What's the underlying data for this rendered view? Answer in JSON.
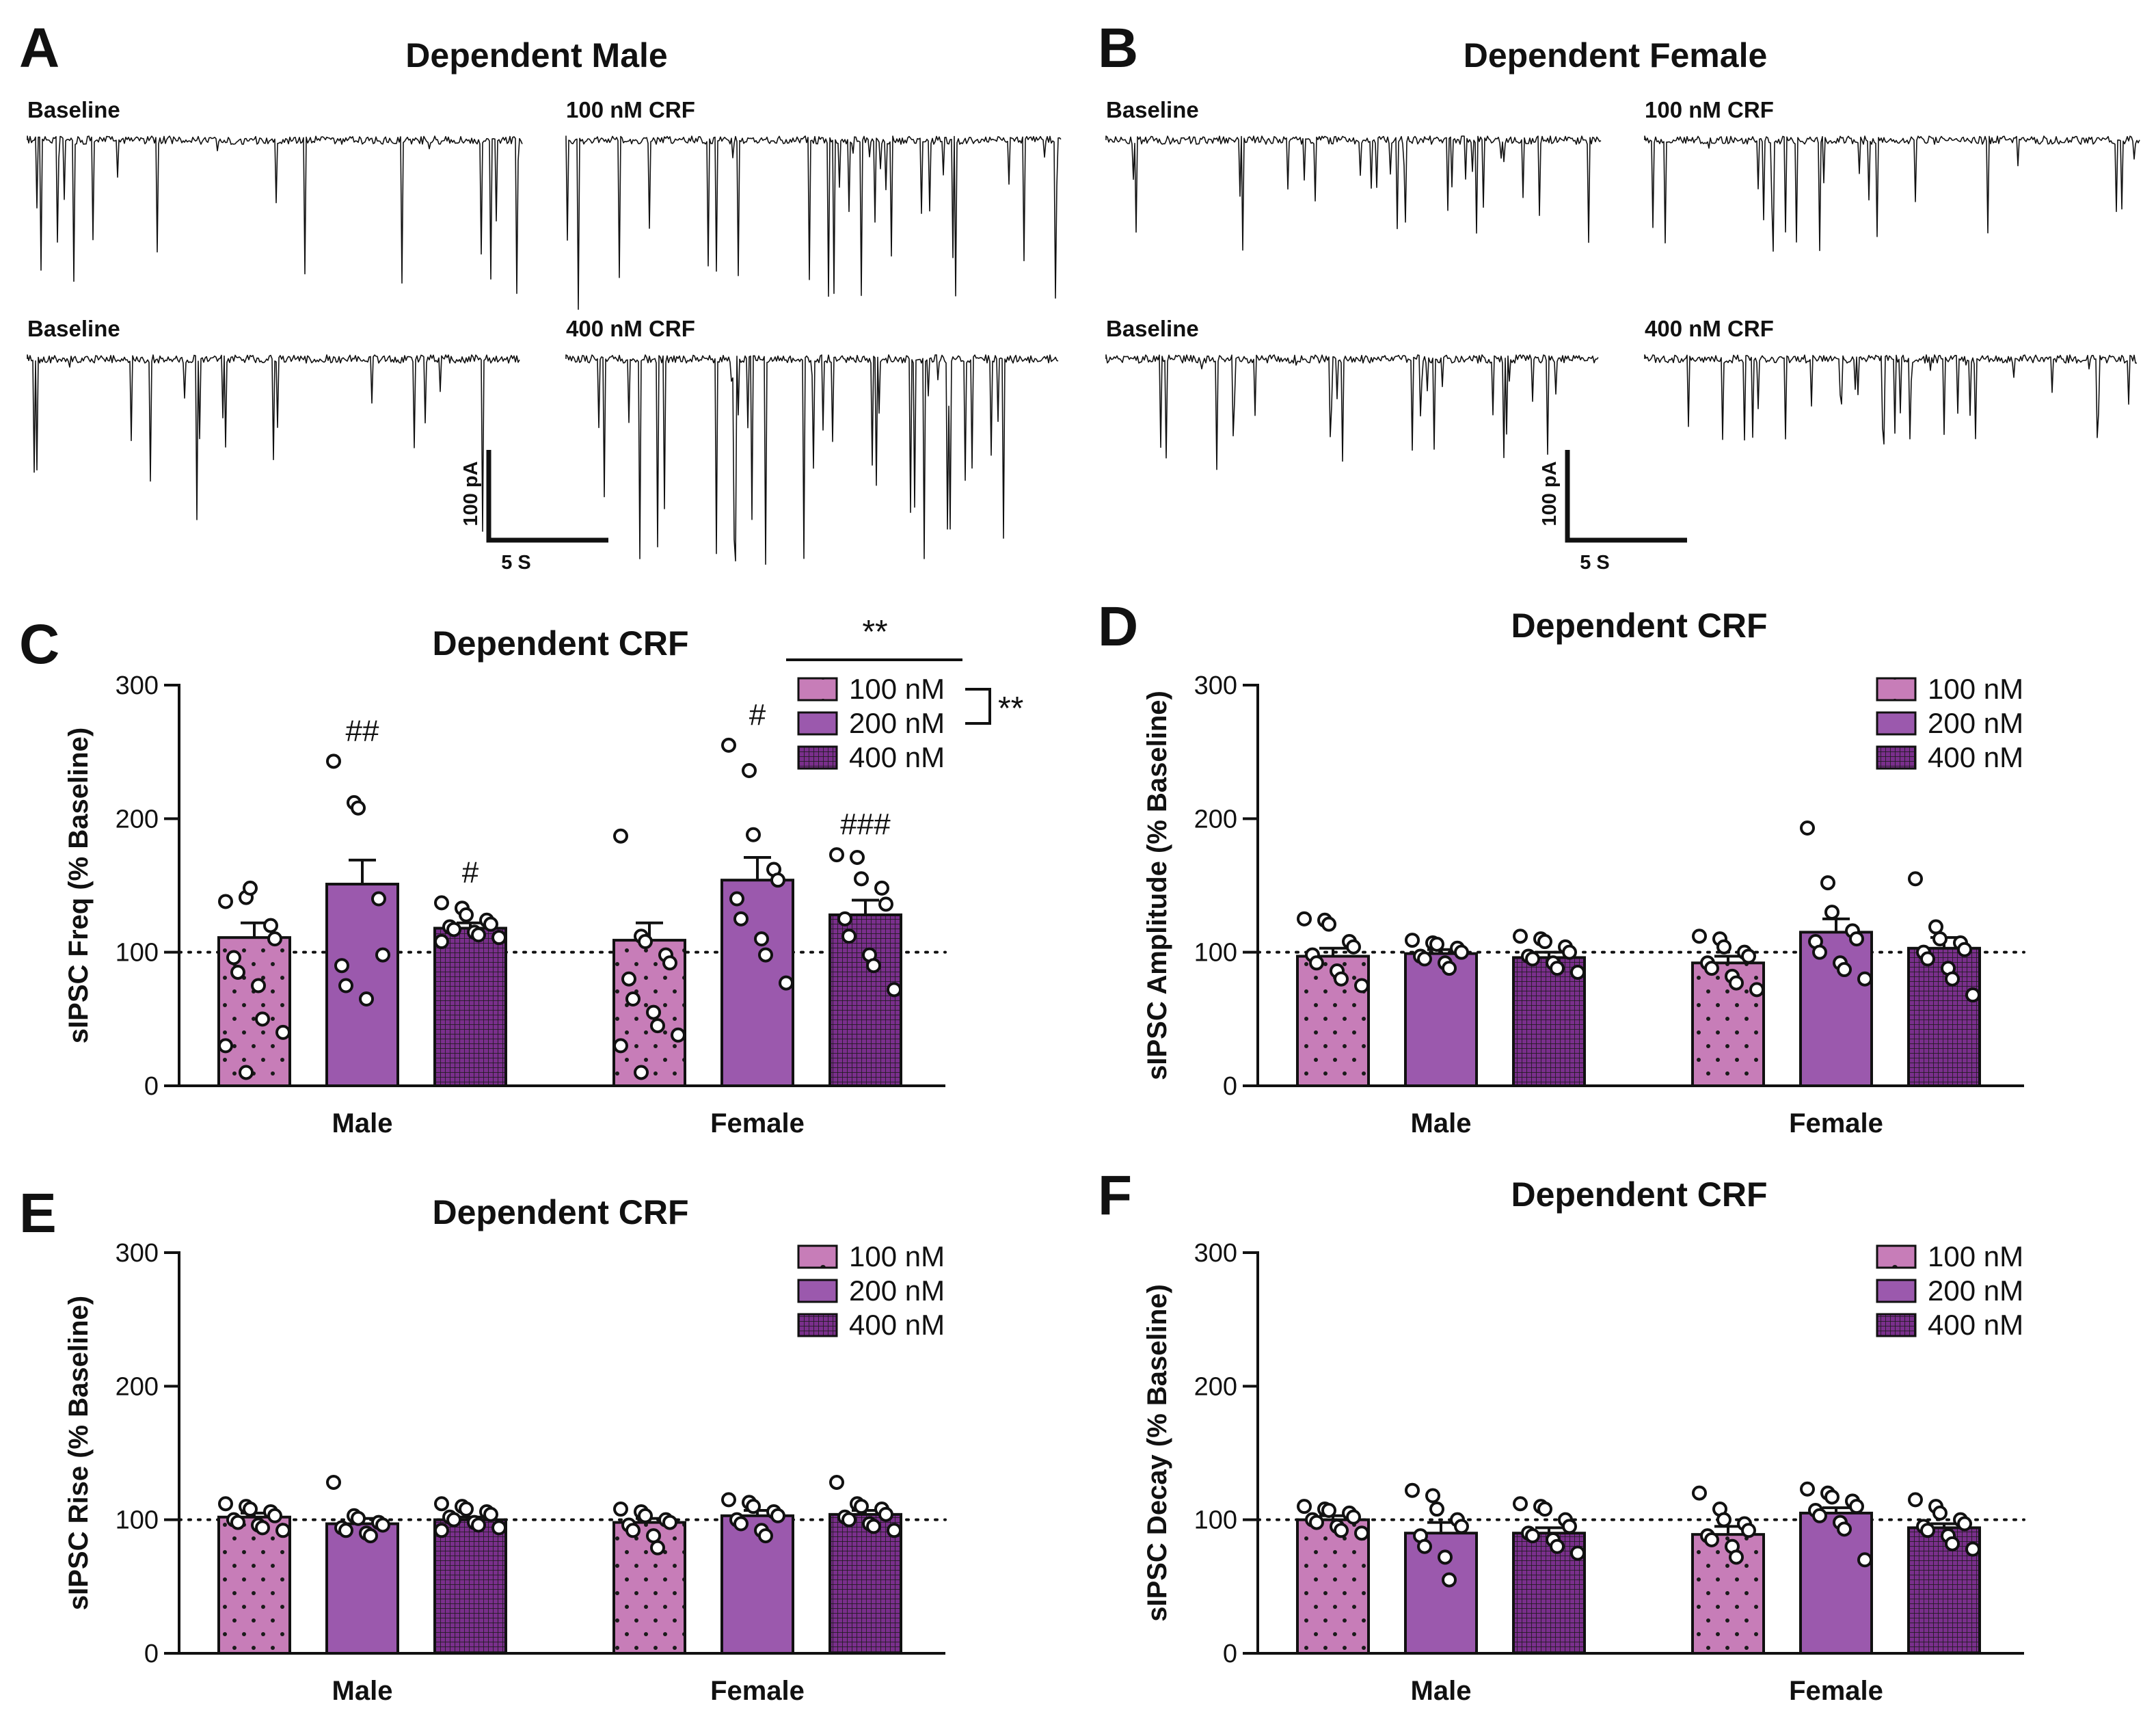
{
  "colors": {
    "light": "#c77db8",
    "mid": "#9b59ad",
    "dark": "#7a2f8c",
    "ink": "#111111"
  },
  "panels_traces": [
    {
      "letter": "A",
      "title": "Dependent Male",
      "labels": [
        "Baseline",
        "100 nM CRF",
        "Baseline",
        "400 nM CRF"
      ],
      "scale": {
        "y": "100 pA",
        "x": "5 S"
      }
    },
    {
      "letter": "B",
      "title": "Dependent Female",
      "labels": [
        "Baseline",
        "100 nM CRF",
        "Baseline",
        "400 nM CRF"
      ],
      "scale": {
        "y": "100 pA",
        "x": "5 S"
      }
    }
  ],
  "chart_data": [
    {
      "panel": "C",
      "type": "bar",
      "title": "Dependent CRF",
      "ylabel": "sIPSC Freq (% Baseline)",
      "categories": [
        "Male",
        "Female"
      ],
      "ylim": [
        0,
        300
      ],
      "yticks": [
        0,
        100,
        200,
        300
      ],
      "reference_line": 100,
      "legend": [
        "100 nM",
        "200 nM",
        "400 nM"
      ],
      "annotations": {
        "legend_comparison": "**",
        "bracket_comparison": "**",
        "bar_marks": [
          [
            "",
            "##",
            "#"
          ],
          [
            "",
            "#",
            "###"
          ]
        ]
      },
      "series": [
        {
          "name": "100 nM",
          "values": [
            111,
            109
          ],
          "sem": [
            11,
            13
          ],
          "points": [
            [
              138,
              141,
              148,
              120,
              110,
              96,
              85,
              75,
              50,
              40,
              30,
              10
            ],
            [
              187,
              112,
              108,
              98,
              92,
              80,
              65,
              55,
              45,
              38,
              30,
              10
            ]
          ]
        },
        {
          "name": "200 nM",
          "values": [
            151,
            154
          ],
          "sem": [
            18,
            17
          ],
          "points": [
            [
              243,
              212,
              208,
              140,
              98,
              90,
              75,
              65
            ],
            [
              255,
              236,
              188,
              162,
              154,
              140,
              125,
              110,
              98,
              77
            ]
          ]
        },
        {
          "name": "400 nM",
          "values": [
            118,
            128
          ],
          "sem": [
            4,
            11
          ],
          "points": [
            [
              137,
              133,
              128,
              124,
              121,
              119,
              117,
              115,
              113,
              111,
              108
            ],
            [
              173,
              171,
              155,
              148,
              136,
              125,
              112,
              98,
              90,
              72
            ]
          ]
        }
      ]
    },
    {
      "panel": "D",
      "type": "bar",
      "title": "Dependent CRF",
      "ylabel": "sIPSC Amplitude (% Baseline)",
      "categories": [
        "Male",
        "Female"
      ],
      "ylim": [
        0,
        300
      ],
      "yticks": [
        0,
        100,
        200,
        300
      ],
      "reference_line": 100,
      "legend": [
        "100 nM",
        "200 nM",
        "400 nM"
      ],
      "series": [
        {
          "name": "100 nM",
          "values": [
            97,
            92
          ],
          "sem": [
            6,
            5
          ],
          "points": [
            [
              125,
              124,
              121,
              108,
              104,
              98,
              92,
              86,
              80,
              75
            ],
            [
              112,
              110,
              104,
              100,
              97,
              92,
              88,
              82,
              77,
              72
            ]
          ]
        },
        {
          "name": "200 nM",
          "values": [
            99,
            115
          ],
          "sem": [
            3,
            10
          ],
          "points": [
            [
              109,
              107,
              106,
              103,
              100,
              97,
              95,
              92,
              88
            ],
            [
              193,
              152,
              130,
              116,
              110,
              108,
              100,
              92,
              87,
              80
            ]
          ]
        },
        {
          "name": "400 nM",
          "values": [
            96,
            103
          ],
          "sem": [
            4,
            8
          ],
          "points": [
            [
              112,
              110,
              108,
              104,
              100,
              97,
              95,
              92,
              88,
              85
            ],
            [
              155,
              119,
              110,
              107,
              102,
              100,
              95,
              88,
              80,
              68
            ]
          ]
        }
      ]
    },
    {
      "panel": "E",
      "type": "bar",
      "title": "Dependent CRF",
      "ylabel": "sIPSC Rise (% Baseline)",
      "categories": [
        "Male",
        "Female"
      ],
      "ylim": [
        0,
        300
      ],
      "yticks": [
        0,
        100,
        200,
        300
      ],
      "reference_line": 100,
      "legend": [
        "100 nM",
        "200 nM",
        "400 nM"
      ],
      "series": [
        {
          "name": "100 nM",
          "values": [
            102,
            98
          ],
          "sem": [
            3,
            3
          ],
          "points": [
            [
              112,
              110,
              108,
              106,
              103,
              100,
              98,
              96,
              94,
              92
            ],
            [
              108,
              106,
              103,
              100,
              98,
              96,
              92,
              88,
              79
            ]
          ]
        },
        {
          "name": "200 nM",
          "values": [
            97,
            103
          ],
          "sem": [
            4,
            4
          ],
          "points": [
            [
              128,
              103,
              101,
              98,
              96,
              94,
              92,
              90,
              88
            ],
            [
              115,
              113,
              110,
              106,
              103,
              100,
              97,
              92,
              88
            ]
          ]
        },
        {
          "name": "400 nM",
          "values": [
            100,
            104
          ],
          "sem": [
            2,
            3
          ],
          "points": [
            [
              112,
              110,
              108,
              106,
              104,
              102,
              100,
              98,
              96,
              94,
              92
            ],
            [
              128,
              112,
              110,
              108,
              104,
              102,
              100,
              97,
              95,
              92
            ]
          ]
        }
      ]
    },
    {
      "panel": "F",
      "type": "bar",
      "title": "Dependent CRF",
      "ylabel": "sIPSC Decay (% Baseline)",
      "categories": [
        "Male",
        "Female"
      ],
      "ylim": [
        0,
        300
      ],
      "yticks": [
        0,
        100,
        200,
        300
      ],
      "reference_line": 100,
      "legend": [
        "100 nM",
        "200 nM",
        "400 nM"
      ],
      "series": [
        {
          "name": "100 nM",
          "values": [
            100,
            89
          ],
          "sem": [
            3,
            6
          ],
          "points": [
            [
              110,
              108,
              107,
              105,
              102,
              100,
              98,
              95,
              92,
              90
            ],
            [
              120,
              108,
              100,
              97,
              92,
              88,
              85,
              80,
              72
            ]
          ]
        },
        {
          "name": "200 nM",
          "values": [
            90,
            105
          ],
          "sem": [
            8,
            4
          ],
          "points": [
            [
              122,
              118,
              108,
              100,
              95,
              88,
              80,
              72,
              55
            ],
            [
              123,
              120,
              117,
              114,
              110,
              107,
              103,
              98,
              93,
              70
            ]
          ]
        },
        {
          "name": "400 nM",
          "values": [
            90,
            94
          ],
          "sem": [
            4,
            3
          ],
          "points": [
            [
              112,
              110,
              108,
              100,
              95,
              90,
              88,
              85,
              80,
              75
            ],
            [
              115,
              110,
              105,
              100,
              97,
              95,
              92,
              88,
              82,
              78
            ]
          ]
        }
      ]
    }
  ]
}
